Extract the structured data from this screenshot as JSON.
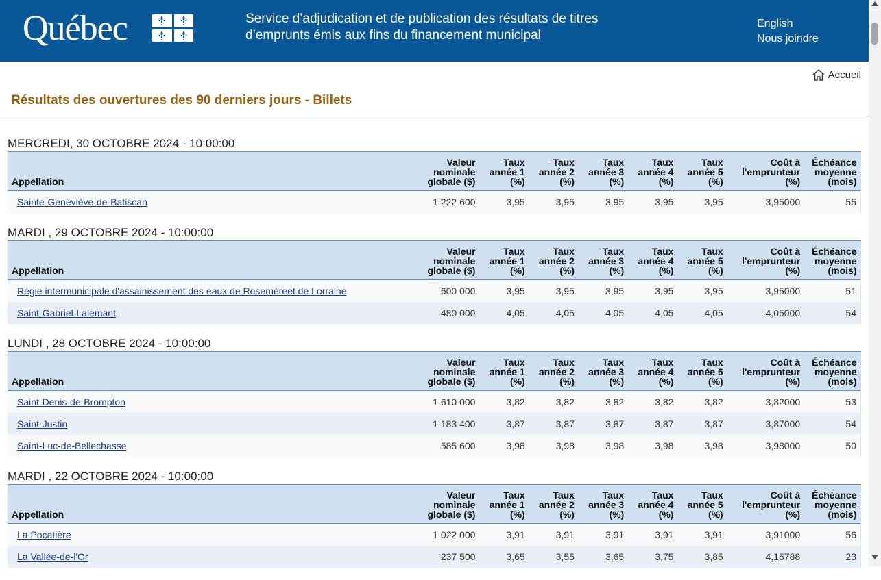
{
  "header": {
    "logo_text": "Québec",
    "service_title_line1": "Service d’adjudication et de publication des résultats de titres",
    "service_title_line2": "d’emprunts émis aux fins du financement municipal",
    "link_english": "English",
    "link_contact": "Nous joindre"
  },
  "nav": {
    "home_label": "Accueil"
  },
  "page_title": "Résultats des ouvertures des 90 derniers jours - Billets",
  "columns": [
    "Appellation",
    "Valeur nominale globale ($)",
    "Taux année 1 (%)",
    "Taux année 2 (%)",
    "Taux année 3 (%)",
    "Taux année 4 (%)",
    "Taux année 5 (%)",
    "Coût à l'emprunteur (%)",
    "Échéance moyenne (mois)"
  ],
  "sessions": [
    {
      "heading": "MERCREDI, 30 OCTOBRE 2024 - 10:00:00",
      "rows": [
        [
          "Sainte-Geneviève-de-Batiscan",
          "1 222 600",
          "3,95",
          "3,95",
          "3,95",
          "3,95",
          "3,95",
          "3,95000",
          "55"
        ]
      ]
    },
    {
      "heading": "MARDI , 29 OCTOBRE 2024 - 10:00:00",
      "rows": [
        [
          "Régie intermunicipale d'assainissement des eaux de Rosemèreet de Lorraine",
          "600 000",
          "3,95",
          "3,95",
          "3,95",
          "3,95",
          "3,95",
          "3,95000",
          "51"
        ],
        [
          "Saint-Gabriel-Lalemant",
          "480 000",
          "4,05",
          "4,05",
          "4,05",
          "4,05",
          "4,05",
          "4,05000",
          "54"
        ]
      ]
    },
    {
      "heading": "LUNDI , 28 OCTOBRE 2024 - 10:00:00",
      "rows": [
        [
          "Saint-Denis-de-Brompton",
          "1 610 000",
          "3,82",
          "3,82",
          "3,82",
          "3,82",
          "3,82",
          "3,82000",
          "53"
        ],
        [
          "Saint-Justin",
          "1 183 400",
          "3,87",
          "3,87",
          "3,87",
          "3,87",
          "3,87",
          "3,87000",
          "54"
        ],
        [
          "Saint-Luc-de-Bellechasse",
          "585 600",
          "3,98",
          "3,98",
          "3,98",
          "3,98",
          "3,98",
          "3,98000",
          "50"
        ]
      ]
    },
    {
      "heading": "MARDI , 22 OCTOBRE 2024 - 10:00:00",
      "rows": [
        [
          "La Pocatière",
          "1 022 000",
          "3,91",
          "3,91",
          "3,91",
          "3,91",
          "3,91",
          "3,91000",
          "56"
        ],
        [
          "La Vallée-de-l'Or",
          "237 500",
          "3,65",
          "3,55",
          "3,65",
          "3,75",
          "3,85",
          "4,15788",
          "23"
        ]
      ]
    }
  ]
}
